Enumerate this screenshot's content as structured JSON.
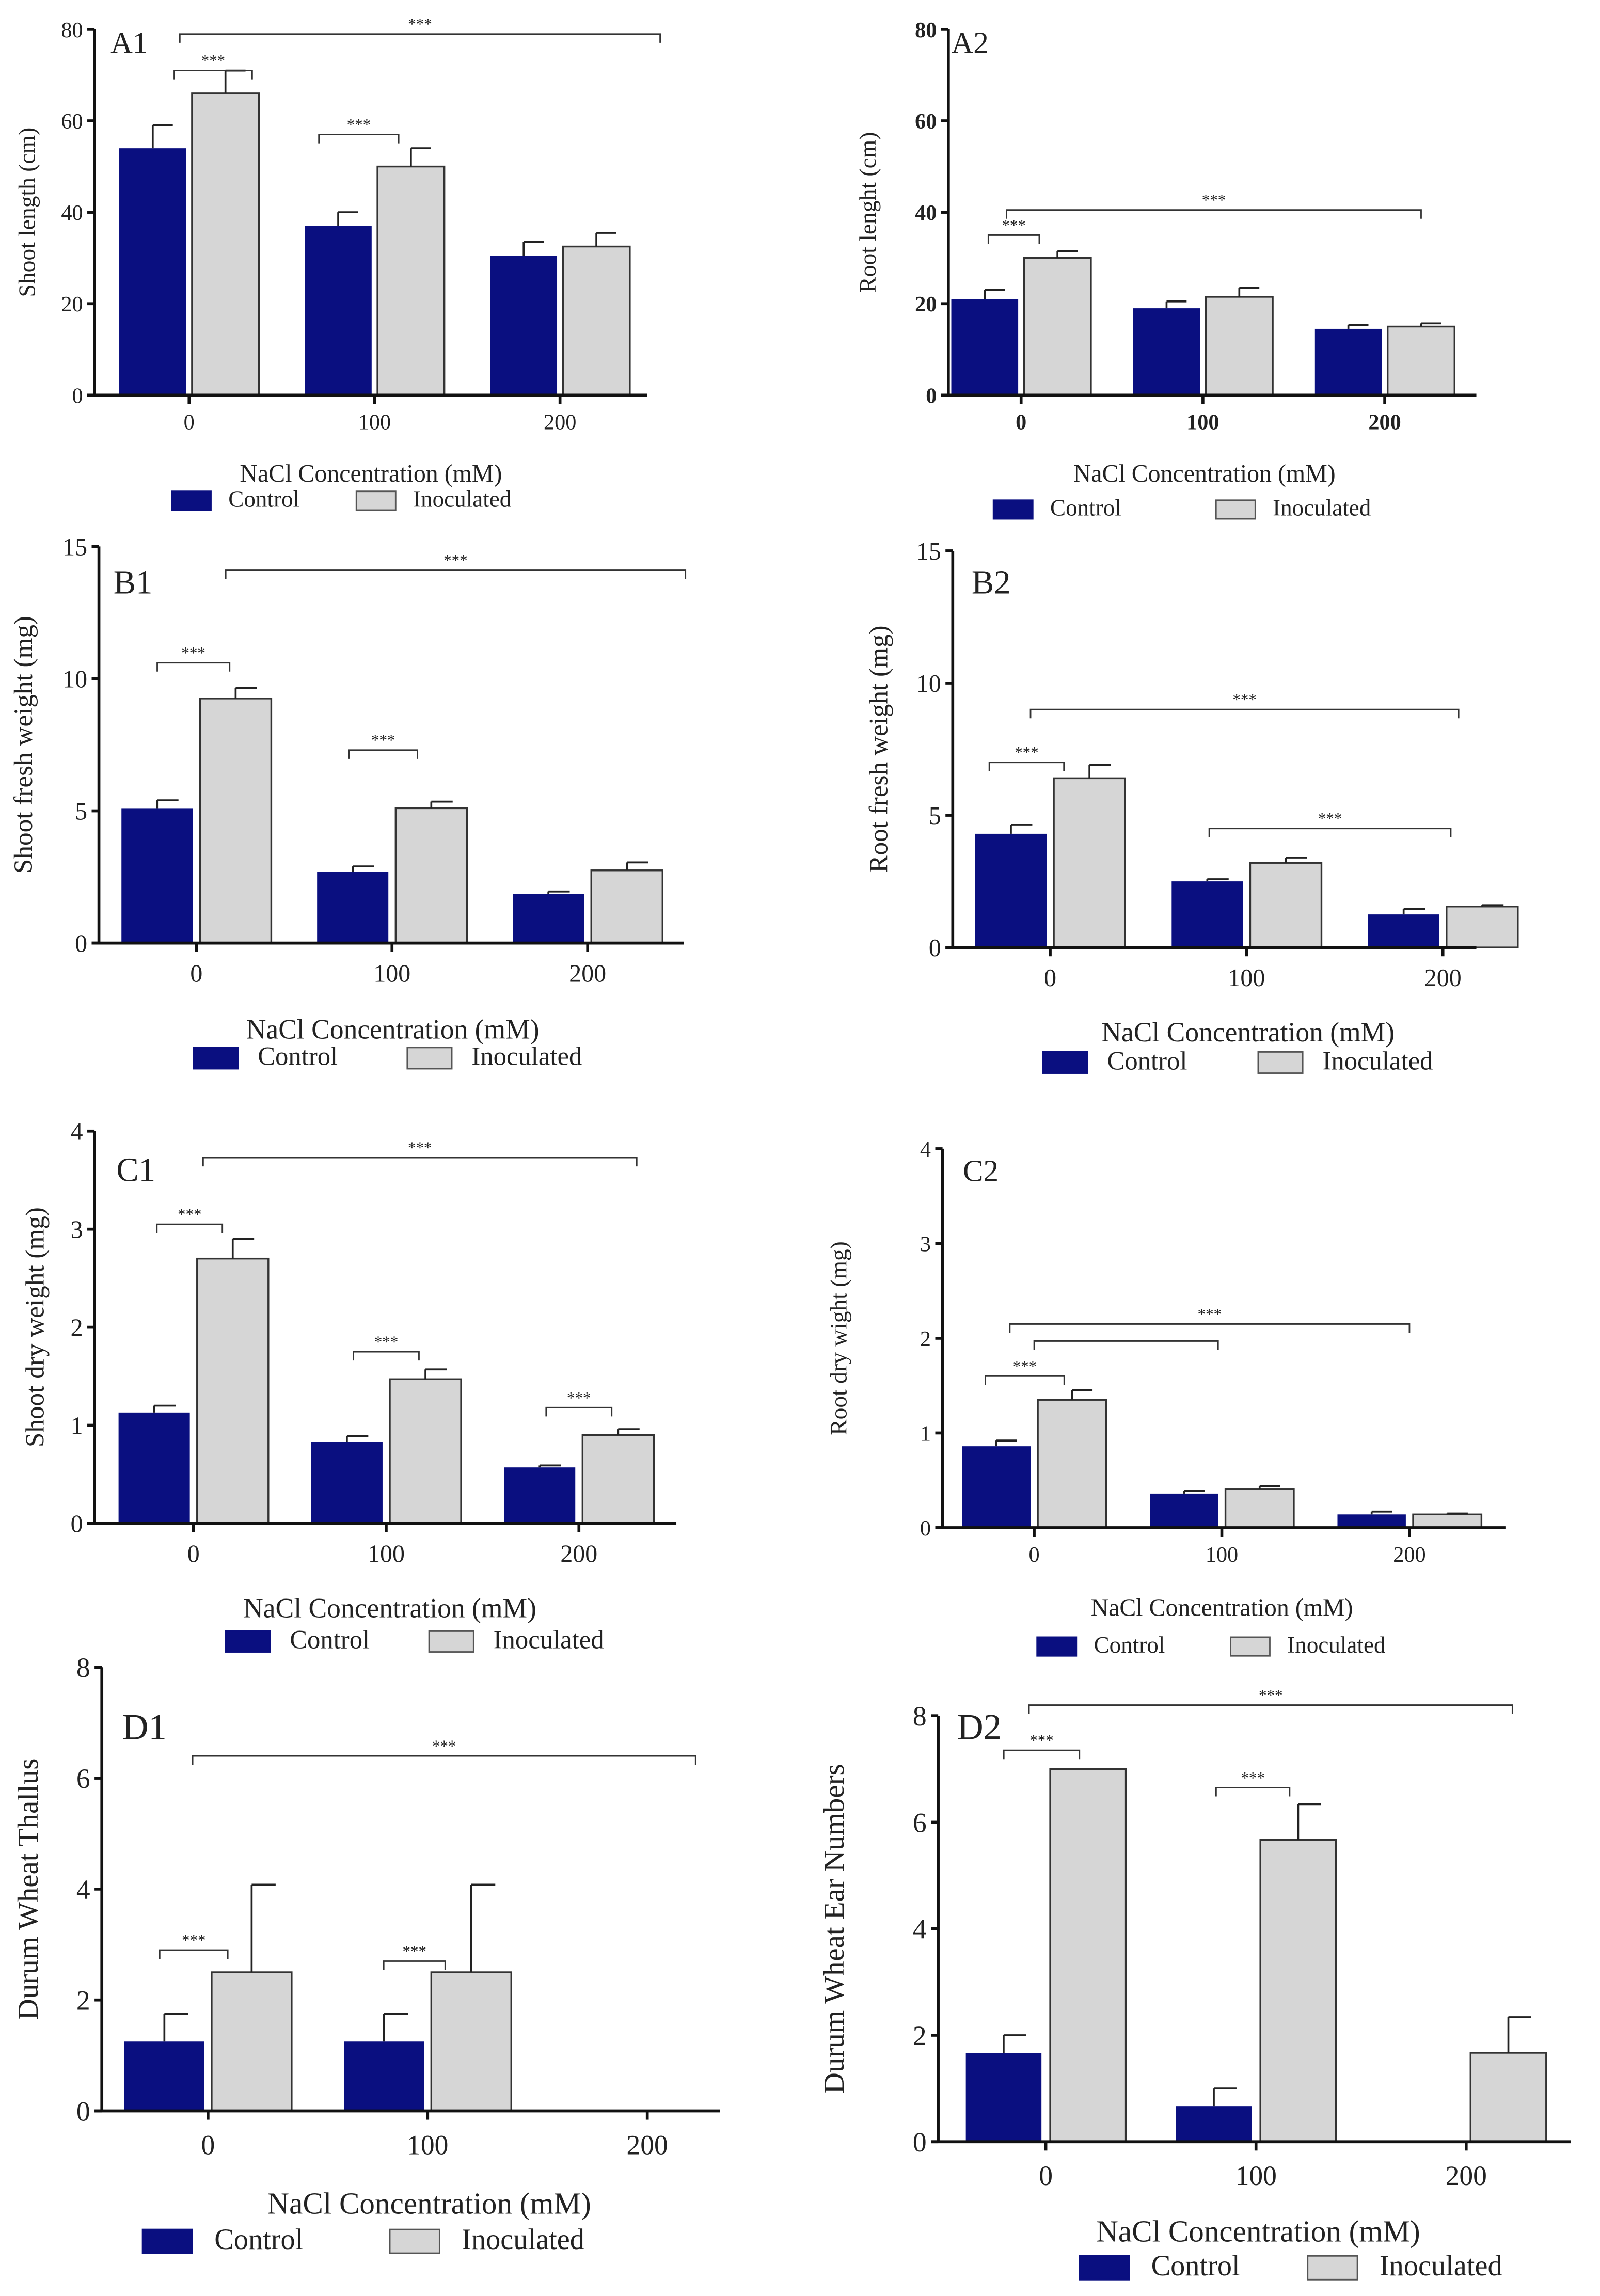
{
  "colors": {
    "control": "#0a0f80",
    "inoculated": "#d6d6d6",
    "axis": "#111111"
  },
  "chart_data": [
    {
      "id": "A1",
      "type": "bar",
      "panel_label": "A1",
      "ylabel": "Shoot length (cm)",
      "xlabel": "NaCl Concentration (mM)",
      "categories": [
        "0",
        "100",
        "200"
      ],
      "ylim": [
        0,
        80
      ],
      "yticks": [
        "0",
        "20",
        "40",
        "60",
        "80"
      ],
      "legend": [
        "Control",
        "Inoculated"
      ],
      "series": [
        {
          "name": "Control",
          "values": [
            54,
            37,
            30.5
          ],
          "errors": [
            5,
            3,
            3
          ]
        },
        {
          "name": "Inoculated",
          "values": [
            66,
            50,
            32.5
          ],
          "errors": [
            5,
            4,
            3
          ]
        }
      ],
      "significance": [
        {
          "x1": -0.08,
          "x2": 0.34,
          "y": 71,
          "label": "***"
        },
        {
          "x1": 0.7,
          "x2": 1.13,
          "y": 57,
          "label": "***"
        },
        {
          "x1": -0.05,
          "x2": 2.54,
          "y": 79,
          "label": "***"
        }
      ]
    },
    {
      "id": "A2",
      "type": "bar",
      "panel_label": "A2",
      "ylabel": "Root lenght (cm)",
      "xlabel": "NaCl Concentration (mM)",
      "categories": [
        "0",
        "100",
        "200"
      ],
      "ylim": [
        0,
        80
      ],
      "yticks": [
        "0",
        "20",
        "40",
        "60",
        "80"
      ],
      "legend": [
        "Control",
        "Inoculated"
      ],
      "series": [
        {
          "name": "Control",
          "values": [
            21,
            19,
            14.5
          ],
          "errors": [
            2,
            1.5,
            0.8
          ]
        },
        {
          "name": "Inoculated",
          "values": [
            30,
            21.5,
            15
          ],
          "errors": [
            1.5,
            2,
            0.7
          ]
        }
      ],
      "significance": [
        {
          "x1": -0.18,
          "x2": 0.1,
          "y": 35,
          "label": "***"
        },
        {
          "x1": -0.08,
          "x2": 2.2,
          "y": 40.5,
          "label": "***"
        }
      ]
    },
    {
      "id": "B1",
      "type": "bar",
      "panel_label": "B1",
      "ylabel": "Shoot fresh weight (mg)",
      "xlabel": "NaCl Concentration (mM)",
      "categories": [
        "0",
        "100",
        "200"
      ],
      "ylim": [
        0,
        15
      ],
      "yticks": [
        "0",
        "5",
        "10",
        "15"
      ],
      "legend": [
        "Control",
        "Inoculated"
      ],
      "series": [
        {
          "name": "Control",
          "values": [
            5.1,
            2.7,
            1.85
          ],
          "errors": [
            0.3,
            0.2,
            0.1
          ]
        },
        {
          "name": "Inoculated",
          "values": [
            9.25,
            5.1,
            2.75
          ],
          "errors": [
            0.4,
            0.25,
            0.3
          ]
        }
      ],
      "significance": [
        {
          "x1": -0.2,
          "x2": 0.17,
          "y": 10.6,
          "label": "***"
        },
        {
          "x1": 0.78,
          "x2": 1.13,
          "y": 7.3,
          "label": "***"
        },
        {
          "x1": 0.15,
          "x2": 2.5,
          "y": 14.1,
          "label": "***"
        }
      ]
    },
    {
      "id": "B2",
      "type": "bar",
      "panel_label": "B2",
      "ylabel": "Root fresh weight (mg)",
      "xlabel": "NaCl Concentration (mM)",
      "categories": [
        "0",
        "100",
        "200"
      ],
      "ylim": [
        0,
        15
      ],
      "yticks": [
        "0",
        "5",
        "10",
        "15"
      ],
      "legend": [
        "Control",
        "Inoculated"
      ],
      "series": [
        {
          "name": "Control",
          "values": [
            4.3,
            2.5,
            1.25
          ],
          "errors": [
            0.35,
            0.08,
            0.2
          ]
        },
        {
          "name": "Inoculated",
          "values": [
            6.4,
            3.2,
            1.55
          ],
          "errors": [
            0.5,
            0.2,
            0.05
          ]
        }
      ],
      "significance": [
        {
          "x1": -0.31,
          "x2": 0.07,
          "y": 7,
          "label": "***"
        },
        {
          "x1": -0.1,
          "x2": 2.08,
          "y": 9,
          "label": "***"
        },
        {
          "x1": 0.81,
          "x2": 2.04,
          "y": 4.5,
          "label": "***"
        }
      ]
    },
    {
      "id": "C1",
      "type": "bar",
      "panel_label": "C1",
      "ylabel": "Shoot dry weight (mg)",
      "xlabel": "NaCl Concentration (mM)",
      "categories": [
        "0",
        "100",
        "200"
      ],
      "ylim": [
        0,
        4
      ],
      "yticks": [
        "0",
        "1",
        "2",
        "3",
        "4"
      ],
      "legend": [
        "Control",
        "Inoculated"
      ],
      "series": [
        {
          "name": "Control",
          "values": [
            1.13,
            0.83,
            0.57
          ],
          "errors": [
            0.07,
            0.06,
            0.02
          ]
        },
        {
          "name": "Inoculated",
          "values": [
            2.7,
            1.47,
            0.9
          ],
          "errors": [
            0.2,
            0.1,
            0.06
          ]
        }
      ],
      "significance": [
        {
          "x1": -0.19,
          "x2": 0.15,
          "y": 3.05,
          "label": "***"
        },
        {
          "x1": 0.83,
          "x2": 1.17,
          "y": 1.75,
          "label": "***"
        },
        {
          "x1": 1.83,
          "x2": 2.17,
          "y": 1.18,
          "label": "***"
        },
        {
          "x1": 0.05,
          "x2": 2.3,
          "y": 3.73,
          "label": "***"
        }
      ]
    },
    {
      "id": "C2",
      "type": "bar",
      "panel_label": "C2",
      "ylabel": "Root dry wight (mg)",
      "xlabel": "NaCl Concentration (mM)",
      "categories": [
        "0",
        "100",
        "200"
      ],
      "ylim": [
        0,
        4
      ],
      "yticks": [
        "0",
        "1",
        "2",
        "3",
        "4"
      ],
      "legend": [
        "Control",
        "Inoculated"
      ],
      "series": [
        {
          "name": "Control",
          "values": [
            0.86,
            0.36,
            0.14
          ],
          "errors": [
            0.06,
            0.03,
            0.03
          ]
        },
        {
          "name": "Inoculated",
          "values": [
            1.35,
            0.41,
            0.14
          ],
          "errors": [
            0.1,
            0.03,
            0.01
          ]
        }
      ],
      "significance": [
        {
          "x1": -0.26,
          "x2": 0.16,
          "y": 1.6,
          "label": "***"
        },
        {
          "x1": 0,
          "x2": 0.98,
          "y": 1.97,
          "label": ""
        },
        {
          "x1": -0.13,
          "x2": 2,
          "y": 2.15,
          "label": "***"
        }
      ]
    },
    {
      "id": "D1",
      "type": "bar",
      "panel_label": "D1",
      "ylabel": "Durum Wheat Thallus",
      "xlabel": "NaCl Concentration (mM)",
      "categories": [
        "0",
        "100",
        "200"
      ],
      "ylim": [
        0,
        8
      ],
      "yticks": [
        "0",
        "2",
        "4",
        "6",
        "8"
      ],
      "legend": [
        "Control",
        "Inoculated"
      ],
      "series": [
        {
          "name": "Control",
          "values": [
            1.25,
            1.25,
            0
          ],
          "errors": [
            0.5,
            0.5,
            0
          ]
        },
        {
          "name": "Inoculated",
          "values": [
            2.5,
            2.5,
            0
          ],
          "errors": [
            1.58,
            1.58,
            0
          ]
        }
      ],
      "significance": [
        {
          "x1": -0.22,
          "x2": 0.09,
          "y": 2.9,
          "label": "***"
        },
        {
          "x1": 0.8,
          "x2": 1.08,
          "y": 2.7,
          "label": "***"
        },
        {
          "x1": -0.07,
          "x2": 2.22,
          "y": 6.4,
          "label": "***"
        }
      ]
    },
    {
      "id": "D2",
      "type": "bar",
      "panel_label": "D2",
      "ylabel": "Durum Wheat  Ear Numbers",
      "xlabel": "NaCl Concentration (mM)",
      "categories": [
        "0",
        "100",
        "200"
      ],
      "ylim": [
        0,
        8
      ],
      "yticks": [
        "0",
        "2",
        "4",
        "6",
        "8"
      ],
      "legend": [
        "Control",
        "Inoculated"
      ],
      "series": [
        {
          "name": "Control",
          "values": [
            1.67,
            0.67,
            0
          ],
          "errors": [
            0.33,
            0.33,
            0
          ]
        },
        {
          "name": "Inoculated",
          "values": [
            7,
            5.67,
            1.67
          ],
          "errors": [
            0,
            0.67,
            0.67
          ]
        }
      ],
      "significance": [
        {
          "x1": -0.2,
          "x2": 0.16,
          "y": 7.35,
          "label": "***"
        },
        {
          "x1": 0.81,
          "x2": 1.16,
          "y": 6.65,
          "label": "***"
        },
        {
          "x1": -0.08,
          "x2": 2.22,
          "y": 8.2,
          "label": "***"
        }
      ]
    }
  ]
}
